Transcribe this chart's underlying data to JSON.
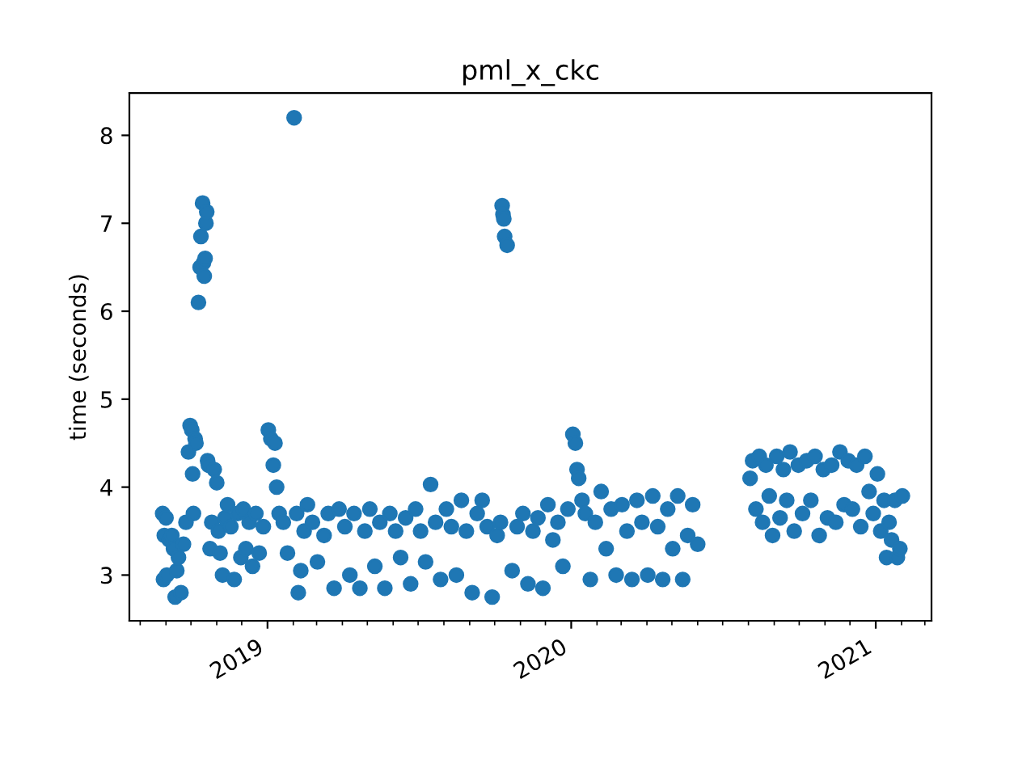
{
  "chart_data": {
    "type": "scatter",
    "title": "pml_x_ckc",
    "ylabel": "time (seconds)",
    "xlim": [
      "2018-07-19",
      "2021-03-09"
    ],
    "ylim": [
      2.48,
      8.48
    ],
    "xticks": [
      {
        "value": "2019-01-01",
        "label": "2019"
      },
      {
        "value": "2020-01-01",
        "label": "2020"
      },
      {
        "value": "2021-01-01",
        "label": "2021"
      }
    ],
    "yticks": [
      3,
      4,
      5,
      6,
      7,
      8
    ],
    "grid": false,
    "legend": false,
    "marker": "circle",
    "series": [
      {
        "color": "#1f77b4",
        "x": [
          "2018-08-28",
          "2018-08-30",
          "2018-09-01",
          "2018-08-29",
          "2018-09-02",
          "2018-09-05",
          "2018-09-08",
          "2018-09-10",
          "2018-09-12",
          "2018-09-14",
          "2018-09-16",
          "2018-09-19",
          "2018-09-22",
          "2018-09-25",
          "2018-09-28",
          "2018-09-30",
          "2018-10-02",
          "2018-10-03",
          "2018-10-04",
          "2018-10-06",
          "2018-10-07",
          "2018-10-10",
          "2018-10-12",
          "2018-10-13",
          "2018-10-15",
          "2018-10-16",
          "2018-10-17",
          "2018-10-18",
          "2018-10-19",
          "2018-10-20",
          "2018-10-21",
          "2018-10-22",
          "2018-10-24",
          "2018-10-26",
          "2018-10-29",
          "2018-11-01",
          "2018-11-03",
          "2018-11-05",
          "2018-11-08",
          "2018-11-11",
          "2018-11-14",
          "2018-11-18",
          "2018-11-22",
          "2018-11-26",
          "2018-11-30",
          "2018-12-03",
          "2018-12-06",
          "2018-12-10",
          "2018-12-14",
          "2018-12-18",
          "2018-12-22",
          "2018-12-27",
          "2019-01-02",
          "2019-01-05",
          "2019-01-08",
          "2019-01-10",
          "2019-01-12",
          "2019-01-15",
          "2019-01-20",
          "2019-01-25",
          "2019-02-02",
          "2019-02-05",
          "2019-02-07",
          "2019-02-10",
          "2019-02-14",
          "2019-02-18",
          "2019-02-24",
          "2019-03-02",
          "2019-03-10",
          "2019-03-15",
          "2019-03-22",
          "2019-03-28",
          "2019-04-04",
          "2019-04-10",
          "2019-04-15",
          "2019-04-22",
          "2019-04-28",
          "2019-05-04",
          "2019-05-10",
          "2019-05-16",
          "2019-05-22",
          "2019-05-28",
          "2019-06-04",
          "2019-06-10",
          "2019-06-16",
          "2019-06-22",
          "2019-06-28",
          "2019-07-04",
          "2019-07-10",
          "2019-07-16",
          "2019-07-22",
          "2019-07-28",
          "2019-08-04",
          "2019-08-10",
          "2019-08-16",
          "2019-08-22",
          "2019-08-28",
          "2019-09-04",
          "2019-09-10",
          "2019-09-16",
          "2019-09-22",
          "2019-09-28",
          "2019-10-04",
          "2019-10-08",
          "2019-10-10",
          "2019-10-11",
          "2019-10-12",
          "2019-10-13",
          "2019-10-16",
          "2019-10-22",
          "2019-10-28",
          "2019-11-04",
          "2019-11-10",
          "2019-11-16",
          "2019-11-22",
          "2019-11-28",
          "2019-12-04",
          "2019-12-10",
          "2019-12-16",
          "2019-12-22",
          "2019-12-28",
          "2020-01-03",
          "2020-01-06",
          "2020-01-08",
          "2020-01-10",
          "2020-01-14",
          "2020-01-18",
          "2020-01-24",
          "2020-01-30",
          "2020-02-06",
          "2020-02-12",
          "2020-02-18",
          "2020-02-24",
          "2020-03-02",
          "2020-03-08",
          "2020-03-14",
          "2020-03-20",
          "2020-03-26",
          "2020-04-02",
          "2020-04-08",
          "2020-04-14",
          "2020-04-20",
          "2020-04-26",
          "2020-05-02",
          "2020-05-08",
          "2020-05-14",
          "2020-05-20",
          "2020-05-26",
          "2020-06-01",
          "2020-08-03",
          "2020-08-06",
          "2020-08-10",
          "2020-08-14",
          "2020-08-18",
          "2020-08-22",
          "2020-08-26",
          "2020-08-30",
          "2020-09-04",
          "2020-09-08",
          "2020-09-12",
          "2020-09-16",
          "2020-09-20",
          "2020-09-25",
          "2020-09-30",
          "2020-10-05",
          "2020-10-10",
          "2020-10-15",
          "2020-10-20",
          "2020-10-25",
          "2020-10-30",
          "2020-11-04",
          "2020-11-09",
          "2020-11-14",
          "2020-11-19",
          "2020-11-24",
          "2020-11-29",
          "2020-12-04",
          "2020-12-09",
          "2020-12-14",
          "2020-12-19",
          "2020-12-24",
          "2020-12-29",
          "2021-01-03",
          "2021-01-07",
          "2021-01-11",
          "2021-01-14",
          "2021-01-17",
          "2021-01-20",
          "2021-01-24",
          "2021-01-27",
          "2021-01-30",
          "2021-02-02"
        ],
        "values": [
          3.7,
          3.45,
          3.65,
          2.95,
          3.0,
          3.4,
          3.45,
          3.3,
          2.75,
          3.05,
          3.2,
          2.8,
          3.35,
          3.6,
          4.4,
          4.7,
          4.65,
          4.15,
          3.7,
          4.55,
          4.5,
          6.1,
          6.5,
          6.85,
          7.23,
          6.55,
          6.4,
          6.6,
          7.0,
          7.13,
          4.3,
          4.25,
          3.3,
          3.6,
          4.2,
          4.05,
          3.5,
          3.25,
          3.0,
          3.65,
          3.8,
          3.55,
          2.95,
          3.7,
          3.2,
          3.75,
          3.3,
          3.6,
          3.1,
          3.7,
          3.25,
          3.55,
          4.65,
          4.55,
          4.25,
          4.5,
          4.0,
          3.7,
          3.6,
          3.25,
          8.2,
          3.7,
          2.8,
          3.05,
          3.5,
          3.8,
          3.6,
          3.15,
          3.45,
          3.7,
          2.85,
          3.75,
          3.55,
          3.0,
          3.7,
          2.85,
          3.5,
          3.75,
          3.1,
          3.6,
          2.85,
          3.7,
          3.5,
          3.2,
          3.65,
          2.9,
          3.75,
          3.5,
          3.15,
          4.03,
          3.6,
          2.95,
          3.75,
          3.55,
          3.0,
          3.85,
          3.5,
          2.8,
          3.7,
          3.85,
          3.55,
          2.75,
          3.45,
          3.6,
          7.2,
          7.1,
          7.05,
          6.85,
          6.75,
          3.05,
          3.55,
          3.7,
          2.9,
          3.5,
          3.65,
          2.85,
          3.8,
          3.4,
          3.6,
          3.1,
          3.75,
          4.6,
          4.5,
          4.2,
          4.1,
          3.85,
          3.7,
          2.95,
          3.6,
          3.95,
          3.3,
          3.75,
          3.0,
          3.8,
          3.5,
          2.95,
          3.85,
          3.6,
          3.0,
          3.9,
          3.55,
          2.95,
          3.75,
          3.3,
          3.9,
          2.95,
          3.45,
          3.8,
          3.35,
          4.1,
          4.3,
          3.75,
          4.35,
          3.6,
          4.25,
          3.9,
          3.45,
          4.35,
          3.65,
          4.2,
          3.85,
          4.4,
          3.5,
          4.25,
          3.7,
          4.3,
          3.85,
          4.35,
          3.45,
          4.2,
          3.65,
          4.25,
          3.6,
          4.4,
          3.8,
          4.3,
          3.75,
          4.25,
          3.55,
          4.35,
          3.95,
          3.7,
          4.15,
          3.5,
          3.85,
          3.2,
          3.6,
          3.4,
          3.85,
          3.2,
          3.3,
          3.9
        ]
      }
    ]
  }
}
